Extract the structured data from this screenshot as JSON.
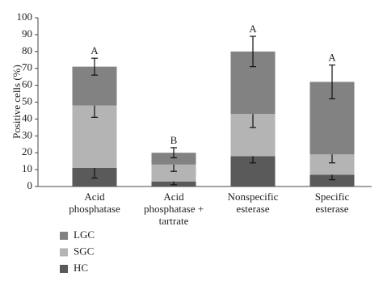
{
  "chart_data": {
    "type": "stacked_bar_error",
    "y_label": "Positive cells (%)",
    "categories": [
      "Acid\nphosphatase",
      "Acid\nphosphatase +\ntartrate",
      "Nonspecific\nesterase",
      "Specific\nesterase"
    ],
    "annotations": [
      "A",
      "B",
      "A",
      "A"
    ],
    "series": [
      {
        "name": "HC",
        "color": "#5a5a5a",
        "values": [
          11,
          3,
          18,
          7
        ],
        "errors": [
          6,
          2,
          4,
          3
        ]
      },
      {
        "name": "SGC",
        "color": "#b4b4b4",
        "values": [
          37,
          10,
          25,
          12
        ],
        "errors": [
          7,
          4,
          8,
          5
        ]
      },
      {
        "name": "LGC",
        "color": "#828282",
        "values": [
          23,
          7,
          37,
          43
        ],
        "errors": [
          5,
          3,
          9,
          10
        ]
      }
    ],
    "ylim": [
      0,
      100
    ],
    "yticks": [
      0,
      10,
      20,
      30,
      40,
      50,
      60,
      70,
      80,
      90,
      100
    ]
  }
}
